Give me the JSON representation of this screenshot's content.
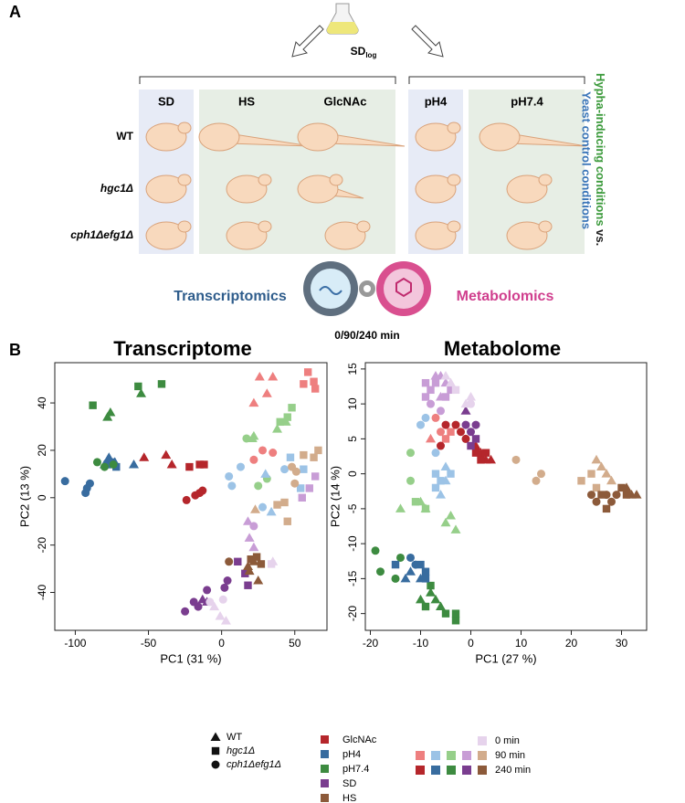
{
  "panel_a": {
    "label": "A",
    "flask_label": "SD",
    "flask_sub": "log",
    "columns": [
      "SD",
      "HS",
      "GlcNAc",
      "pH4",
      "pH7.4"
    ],
    "rows": [
      "WT",
      "hgc1Δ",
      "cph1Δefg1Δ"
    ],
    "side_green": "Hypha-inducing conditions",
    "side_vs": "vs.",
    "side_blue": "Yeast control conditions",
    "left_omics": "Transcriptomics",
    "right_omics": "Metabolomics",
    "times": "0/90/240 min"
  },
  "panel_b_label": "B",
  "chart_data": [
    {
      "type": "scatter",
      "title": "Transcriptome",
      "xlabel": "PC1 (31 %)",
      "ylabel": "PC2 (13 %)",
      "xlim": [
        -114,
        72
      ],
      "ylim": [
        -56,
        57
      ],
      "xticks": [
        -100,
        -50,
        0,
        50
      ],
      "yticks": [
        -40,
        -20,
        0,
        20,
        40
      ],
      "groups": [
        {
          "color": "#386c9f",
          "marker": "circle",
          "x": [
            -107,
            -93,
            -92,
            -90
          ],
          "y": [
            7,
            2,
            4,
            6
          ]
        },
        {
          "color": "#386c9f",
          "marker": "triangle",
          "x": [
            -80,
            -77,
            -73,
            -60
          ],
          "y": [
            14,
            17,
            15,
            14
          ]
        },
        {
          "color": "#386c9f",
          "marker": "square",
          "x": [
            -78,
            -75,
            -72
          ],
          "y": [
            14,
            15,
            13
          ]
        },
        {
          "color": "#3d8b40",
          "marker": "square",
          "x": [
            -88,
            -57,
            -41
          ],
          "y": [
            39,
            47,
            48
          ]
        },
        {
          "color": "#3d8b40",
          "marker": "triangle",
          "x": [
            -78,
            -76,
            -55
          ],
          "y": [
            34,
            36,
            44
          ]
        },
        {
          "color": "#3d8b40",
          "marker": "circle",
          "x": [
            -85,
            -80,
            -74
          ],
          "y": [
            15,
            13,
            14
          ]
        },
        {
          "color": "#b5262b",
          "marker": "triangle",
          "x": [
            -53,
            -38,
            -34
          ],
          "y": [
            17,
            18,
            14
          ]
        },
        {
          "color": "#b5262b",
          "marker": "square",
          "x": [
            -22,
            -15,
            -12
          ],
          "y": [
            13,
            14,
            14
          ]
        },
        {
          "color": "#b5262b",
          "marker": "circle",
          "x": [
            -24,
            -18,
            -15,
            -13
          ],
          "y": [
            -1,
            1,
            2,
            3
          ]
        },
        {
          "color": "#ee7f7f",
          "marker": "triangle",
          "x": [
            26,
            31,
            22,
            35
          ],
          "y": [
            51,
            44,
            40,
            51
          ]
        },
        {
          "color": "#ee7f7f",
          "marker": "square",
          "x": [
            59,
            63,
            64,
            56
          ],
          "y": [
            53,
            49,
            46,
            48
          ]
        },
        {
          "color": "#ee7f7f",
          "marker": "circle",
          "x": [
            28,
            35,
            22
          ],
          "y": [
            20,
            19,
            16
          ]
        },
        {
          "color": "#96cf8a",
          "marker": "triangle",
          "x": [
            21,
            22,
            44,
            38
          ],
          "y": [
            25,
            26,
            32,
            29
          ]
        },
        {
          "color": "#96cf8a",
          "marker": "square",
          "x": [
            48,
            45,
            40
          ],
          "y": [
            38,
            34,
            32
          ]
        },
        {
          "color": "#96cf8a",
          "marker": "circle",
          "x": [
            17,
            25,
            31
          ],
          "y": [
            25,
            5,
            8
          ]
        },
        {
          "color": "#9cc3e6",
          "marker": "circle",
          "x": [
            5,
            13,
            7,
            43,
            28
          ],
          "y": [
            9,
            13,
            5,
            12,
            -4
          ]
        },
        {
          "color": "#9cc3e6",
          "marker": "square",
          "x": [
            47,
            56,
            54
          ],
          "y": [
            17,
            12,
            4
          ]
        },
        {
          "color": "#9cc3e6",
          "marker": "triangle",
          "x": [
            34,
            30
          ],
          "y": [
            -6,
            10
          ]
        },
        {
          "color": "#c89dd6",
          "marker": "triangle",
          "x": [
            18,
            19,
            22
          ],
          "y": [
            -10,
            -17,
            -21
          ]
        },
        {
          "color": "#c89dd6",
          "marker": "square",
          "x": [
            64,
            60,
            55
          ],
          "y": [
            9,
            4,
            0
          ]
        },
        {
          "color": "#c89dd6",
          "marker": "circle",
          "x": [
            22
          ],
          "y": [
            -12
          ]
        },
        {
          "color": "#d2ac8c",
          "marker": "square",
          "x": [
            66,
            63,
            56,
            45,
            43,
            38
          ],
          "y": [
            20,
            17,
            18,
            -10,
            -2,
            -3
          ]
        },
        {
          "color": "#d2ac8c",
          "marker": "triangle",
          "x": [
            23
          ],
          "y": [
            -5
          ]
        },
        {
          "color": "#d2ac8c",
          "marker": "circle",
          "x": [
            51,
            48,
            50
          ],
          "y": [
            11,
            13,
            6
          ]
        },
        {
          "color": "#7a3d8f",
          "marker": "square",
          "x": [
            11,
            16,
            18
          ],
          "y": [
            -27,
            -32,
            -37
          ]
        },
        {
          "color": "#7a3d8f",
          "marker": "circle",
          "x": [
            -25,
            -19,
            -16,
            -10,
            4,
            2
          ],
          "y": [
            -48,
            -44,
            -46,
            -39,
            -35,
            -38
          ]
        },
        {
          "color": "#7a3d8f",
          "marker": "triangle",
          "x": [
            -13,
            -10
          ],
          "y": [
            -43,
            -44
          ]
        },
        {
          "color": "#8c5a3a",
          "marker": "triangle",
          "x": [
            19,
            22,
            25,
            18
          ],
          "y": [
            -31,
            -27,
            -35,
            -29
          ]
        },
        {
          "color": "#8c5a3a",
          "marker": "square",
          "x": [
            24,
            27,
            20
          ],
          "y": [
            -25,
            -28,
            -26
          ]
        },
        {
          "color": "#8c5a3a",
          "marker": "circle",
          "x": [
            5
          ],
          "y": [
            -27
          ]
        },
        {
          "color": "#e6d3ec",
          "marker": "triangle",
          "x": [
            -5,
            -1,
            3,
            35
          ],
          "y": [
            -46,
            -50,
            -52,
            -27
          ]
        },
        {
          "color": "#e6d3ec",
          "marker": "circle",
          "x": [
            -8,
            1
          ],
          "y": [
            -44,
            -43
          ]
        },
        {
          "color": "#e6d3ec",
          "marker": "square",
          "x": [
            34
          ],
          "y": [
            -28
          ]
        }
      ]
    },
    {
      "type": "scatter",
      "title": "Metabolome",
      "xlabel": "PC1 (27 %)",
      "ylabel": "PC2 (14 %)",
      "xlim": [
        -21,
        35
      ],
      "ylim": [
        -22.4,
        15.9
      ],
      "xticks": [
        -20,
        -10,
        0,
        10,
        20,
        30
      ],
      "yticks": [
        -20,
        -15,
        -10,
        -5,
        0,
        5,
        10,
        15
      ],
      "groups": [
        {
          "color": "#3d8b40",
          "marker": "circle",
          "x": [
            -19,
            -18,
            -15,
            -14
          ],
          "y": [
            -11,
            -14,
            -15,
            -12
          ]
        },
        {
          "color": "#3d8b40",
          "marker": "triangle",
          "x": [
            -10,
            -8,
            -7,
            -6
          ],
          "y": [
            -18,
            -17,
            -18,
            -19
          ]
        },
        {
          "color": "#3d8b40",
          "marker": "square",
          "x": [
            -9,
            -8,
            -5,
            -3,
            -3
          ],
          "y": [
            -19,
            -16,
            -20,
            -20,
            -21
          ]
        },
        {
          "color": "#386c9f",
          "marker": "square",
          "x": [
            -15,
            -10,
            -9,
            -9
          ],
          "y": [
            -13,
            -13,
            -14,
            -15
          ]
        },
        {
          "color": "#386c9f",
          "marker": "triangle",
          "x": [
            -13,
            -12,
            -10
          ],
          "y": [
            -15,
            -14,
            -15
          ]
        },
        {
          "color": "#386c9f",
          "marker": "circle",
          "x": [
            -12,
            -11
          ],
          "y": [
            -12,
            -13
          ]
        },
        {
          "color": "#96cf8a",
          "marker": "circle",
          "x": [
            -12,
            -12
          ],
          "y": [
            3,
            -1
          ]
        },
        {
          "color": "#96cf8a",
          "marker": "triangle",
          "x": [
            -14,
            -10,
            -9,
            -5,
            -3,
            -4
          ],
          "y": [
            -5,
            -4,
            -5,
            -7,
            -8,
            -6
          ]
        },
        {
          "color": "#96cf8a",
          "marker": "square",
          "x": [
            -11,
            -9
          ],
          "y": [
            -4,
            -5
          ]
        },
        {
          "color": "#9cc3e6",
          "marker": "square",
          "x": [
            -7,
            -6,
            -7,
            -4
          ],
          "y": [
            0,
            -1,
            -2,
            0
          ]
        },
        {
          "color": "#9cc3e6",
          "marker": "circle",
          "x": [
            -10,
            -9,
            -7
          ],
          "y": [
            7,
            8,
            3
          ]
        },
        {
          "color": "#9cc3e6",
          "marker": "triangle",
          "x": [
            -5,
            -6,
            -5
          ],
          "y": [
            1,
            -3,
            -1
          ]
        },
        {
          "color": "#c89dd6",
          "marker": "square",
          "x": [
            -9,
            -8,
            -7,
            -9,
            -4,
            -5
          ],
          "y": [
            13,
            12,
            13,
            11,
            12,
            11
          ]
        },
        {
          "color": "#c89dd6",
          "marker": "triangle",
          "x": [
            -7,
            -6,
            -5,
            -6
          ],
          "y": [
            14,
            14,
            13,
            11
          ]
        },
        {
          "color": "#c89dd6",
          "marker": "circle",
          "x": [
            -8,
            -6
          ],
          "y": [
            10,
            9
          ]
        },
        {
          "color": "#ee7f7f",
          "marker": "circle",
          "x": [
            -7,
            -6
          ],
          "y": [
            8,
            6
          ]
        },
        {
          "color": "#ee7f7f",
          "marker": "square",
          "x": [
            -5,
            -4
          ],
          "y": [
            5,
            6
          ]
        },
        {
          "color": "#ee7f7f",
          "marker": "triangle",
          "x": [
            -8
          ],
          "y": [
            5
          ]
        },
        {
          "color": "#b5262b",
          "marker": "circle",
          "x": [
            -5,
            -3,
            -2,
            -1,
            -6
          ],
          "y": [
            7,
            7,
            6,
            5,
            4
          ]
        },
        {
          "color": "#b5262b",
          "marker": "triangle",
          "x": [
            1,
            2,
            3,
            4
          ],
          "y": [
            4,
            3,
            2,
            2
          ]
        },
        {
          "color": "#b5262b",
          "marker": "square",
          "x": [
            1,
            2,
            3
          ],
          "y": [
            3,
            2,
            3
          ]
        },
        {
          "color": "#7a3d8f",
          "marker": "circle",
          "x": [
            -1,
            0,
            1
          ],
          "y": [
            7,
            6,
            7
          ]
        },
        {
          "color": "#7a3d8f",
          "marker": "square",
          "x": [
            1,
            0
          ],
          "y": [
            5,
            4
          ]
        },
        {
          "color": "#7a3d8f",
          "marker": "triangle",
          "x": [
            -1
          ],
          "y": [
            9
          ]
        },
        {
          "color": "#e6d3ec",
          "marker": "triangle",
          "x": [
            -5,
            -4,
            0,
            -1
          ],
          "y": [
            14,
            13,
            11,
            10
          ]
        },
        {
          "color": "#e6d3ec",
          "marker": "circle",
          "x": [
            0
          ],
          "y": [
            10
          ]
        },
        {
          "color": "#e6d3ec",
          "marker": "square",
          "x": [
            -3
          ],
          "y": [
            12
          ]
        },
        {
          "color": "#d2ac8c",
          "marker": "circle",
          "x": [
            9,
            13,
            14
          ],
          "y": [
            2,
            -1,
            0
          ]
        },
        {
          "color": "#d2ac8c",
          "marker": "square",
          "x": [
            22,
            24,
            25
          ],
          "y": [
            -1,
            0,
            -2
          ]
        },
        {
          "color": "#d2ac8c",
          "marker": "triangle",
          "x": [
            26,
            27,
            28,
            25
          ],
          "y": [
            1,
            0,
            -1,
            2
          ]
        },
        {
          "color": "#8c5a3a",
          "marker": "circle",
          "x": [
            24,
            25,
            27,
            28,
            29
          ],
          "y": [
            -3,
            -4,
            -3,
            -4,
            -3
          ]
        },
        {
          "color": "#8c5a3a",
          "marker": "square",
          "x": [
            26,
            27,
            30,
            31
          ],
          "y": [
            -3,
            -5,
            -2,
            -3
          ]
        },
        {
          "color": "#8c5a3a",
          "marker": "triangle",
          "x": [
            31,
            32,
            33
          ],
          "y": [
            -2,
            -3,
            -3
          ]
        }
      ]
    }
  ],
  "legend": {
    "strains": [
      {
        "label": "WT",
        "marker": "triangle"
      },
      {
        "label": "hgc1Δ",
        "marker": "square"
      },
      {
        "label": "cph1Δefg1Δ",
        "marker": "circle"
      }
    ],
    "conditions": [
      {
        "label": "GlcNAc",
        "color": "#b5262b"
      },
      {
        "label": "pH4",
        "color": "#386c9f"
      },
      {
        "label": "pH7.4",
        "color": "#3d8b40"
      },
      {
        "label": "SD",
        "color": "#7a3d8f"
      },
      {
        "label": "HS",
        "color": "#8c5a3a"
      }
    ],
    "times": [
      {
        "label": "0 min",
        "colors": [
          "#e6d3ec"
        ]
      },
      {
        "label": "90 min",
        "colors": [
          "#ee7f7f",
          "#9cc3e6",
          "#96cf8a",
          "#c89dd6",
          "#d2ac8c"
        ]
      },
      {
        "label": "240 min",
        "colors": [
          "#b5262b",
          "#386c9f",
          "#3d8b40",
          "#7a3d8f",
          "#8c5a3a"
        ]
      }
    ]
  }
}
